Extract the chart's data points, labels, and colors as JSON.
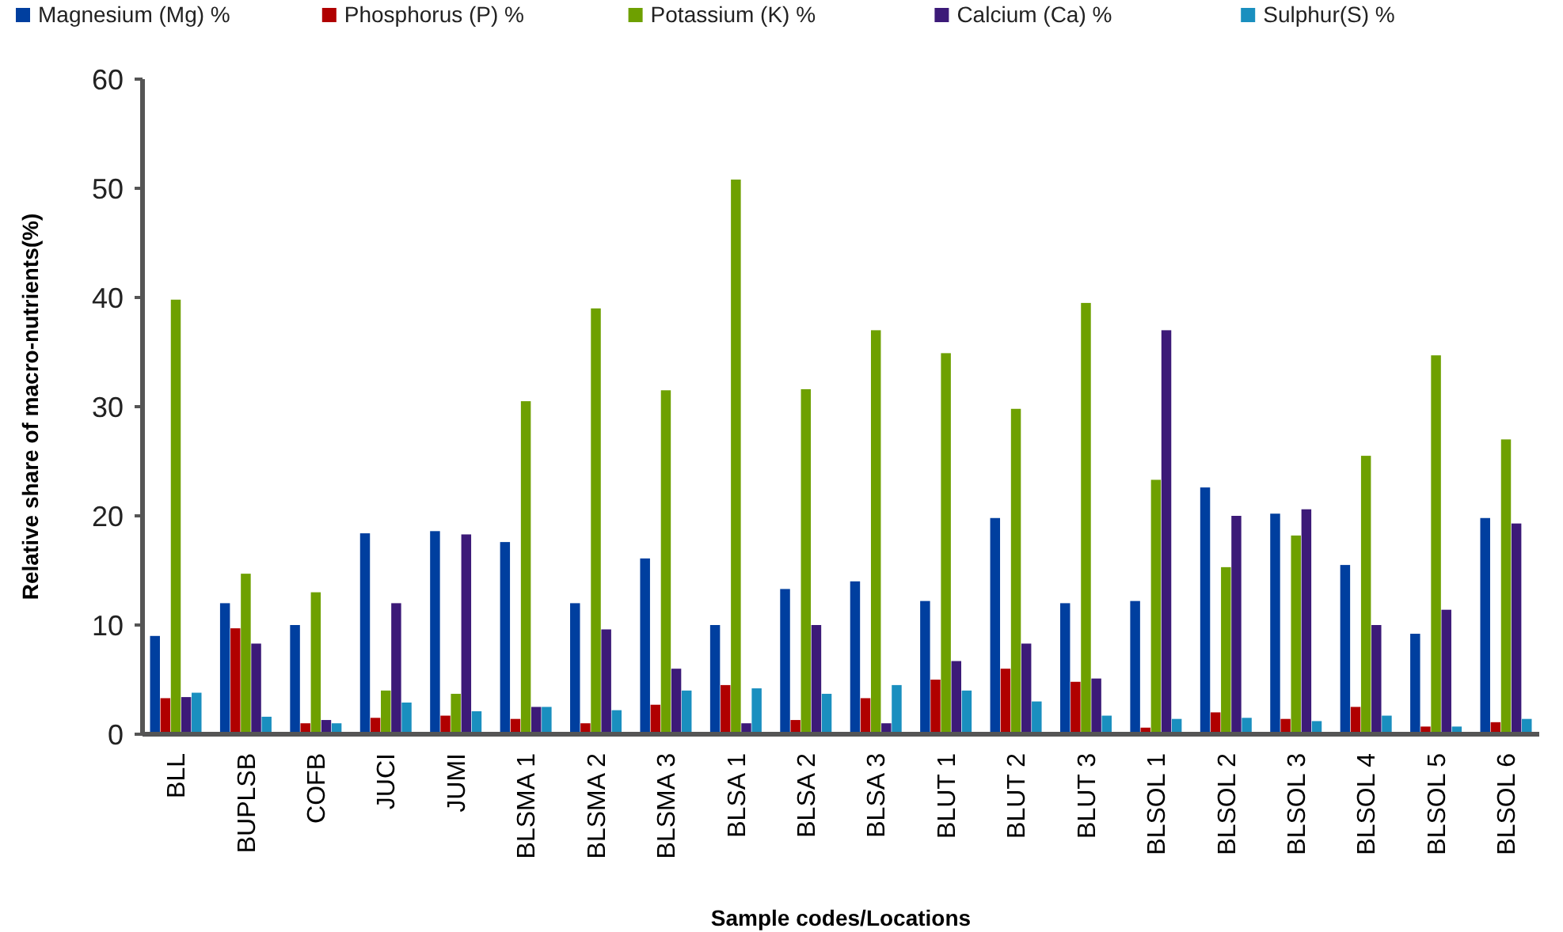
{
  "chart_data": {
    "type": "bar",
    "xlabel": "Sample codes/Locations",
    "ylabel": "Relative share of macro-nutrients(%)",
    "categories": [
      "BLL",
      "BUPLSB",
      "COFB",
      "JUCI",
      "JUMI",
      "BLSMA 1",
      "BLSMA 2",
      "BLSMA 3",
      "BLSA 1",
      "BLSA 2",
      "BLSA 3",
      "BLUT 1",
      "BLUT 2",
      "BLUT 3",
      "BLSOL 1",
      "BLSOL 2",
      "BLSOL 3",
      "BLSOL 4",
      "BLSOL 5",
      "BLSOL 6"
    ],
    "series": [
      {
        "name": "Magnesium (Mg) %",
        "color": "#003f9f",
        "values": [
          9,
          12,
          10,
          18.4,
          18.6,
          17.6,
          12,
          16.1,
          10,
          13.3,
          14,
          12.2,
          19.8,
          12,
          12.2,
          22.6,
          20.2,
          15.5,
          9.2,
          19.8
        ]
      },
      {
        "name": "Phosphorus (P) %",
        "color": "#b00000",
        "values": [
          3.3,
          9.7,
          1,
          1.5,
          1.7,
          1.4,
          1,
          2.7,
          4.5,
          1.3,
          3.3,
          5,
          6,
          4.8,
          0.6,
          2,
          1.4,
          2.5,
          0.7,
          1.1
        ]
      },
      {
        "name": "Potassium (K) %",
        "color": "#6ea000",
        "values": [
          39.8,
          14.7,
          13,
          4,
          3.7,
          30.5,
          39,
          31.5,
          50.8,
          31.6,
          37,
          34.9,
          29.8,
          39.5,
          23.3,
          15.3,
          18.2,
          25.5,
          34.7,
          27
        ]
      },
      {
        "name": "Calcium (Ca) %",
        "color": "#3c1a78",
        "values": [
          3.4,
          8.3,
          1.3,
          12,
          18.3,
          2.5,
          9.6,
          6,
          1,
          10,
          1,
          6.7,
          8.3,
          5.1,
          37,
          20,
          20.6,
          10,
          11.4,
          19.3
        ]
      },
      {
        "name": "Sulphur(S) %",
        "color": "#1a8fbf",
        "values": [
          3.8,
          1.6,
          1,
          2.9,
          2.1,
          2.5,
          2.2,
          4,
          4.2,
          3.7,
          4.5,
          4,
          3,
          1.7,
          1.4,
          1.5,
          1.2,
          1.7,
          0.7,
          1.4
        ]
      }
    ],
    "ylim": [
      0,
      60
    ],
    "yticks": [
      0,
      10,
      20,
      30,
      40,
      50,
      60
    ],
    "grid": false,
    "legend": "top"
  }
}
